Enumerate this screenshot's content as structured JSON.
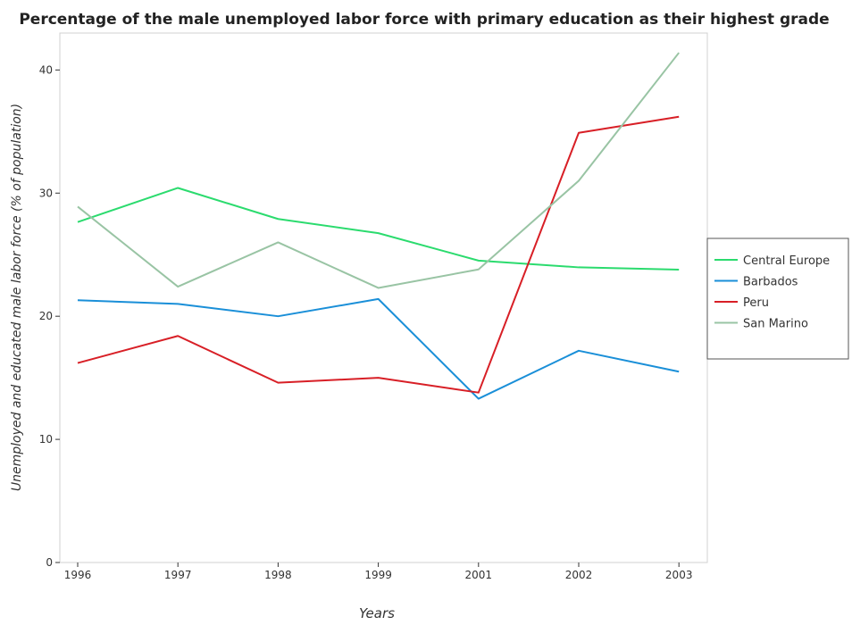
{
  "chart_data": {
    "type": "line",
    "title": "Percentage of the male unemployed labor force with primary education as their highest grade",
    "xlabel": "Years",
    "ylabel": "Unemployed and educated male labor force (% of population)",
    "categories": [
      "1996",
      "1997",
      "1998",
      "1999",
      "2001",
      "2002",
      "2003"
    ],
    "ylim": [
      0,
      43
    ],
    "yticks": [
      0,
      10,
      20,
      30,
      40
    ],
    "grid": false,
    "legend_position": "right",
    "series": [
      {
        "name": "Central Europe",
        "color": "#2bdb6e",
        "values": [
          27.65,
          30.42,
          27.9,
          26.75,
          24.52,
          23.97,
          23.78
        ]
      },
      {
        "name": "Barbados",
        "color": "#1a8fd8",
        "values": [
          21.3,
          21.0,
          20.0,
          21.4,
          13.3,
          17.2,
          15.5
        ]
      },
      {
        "name": "Peru",
        "color": "#d81f26",
        "values": [
          16.2,
          18.4,
          14.6,
          15.0,
          13.8,
          34.9,
          36.2
        ]
      },
      {
        "name": "San Marino",
        "color": "#99c4a4",
        "values": [
          28.9,
          22.4,
          26.0,
          22.3,
          23.8,
          31.0,
          41.4
        ]
      }
    ]
  }
}
